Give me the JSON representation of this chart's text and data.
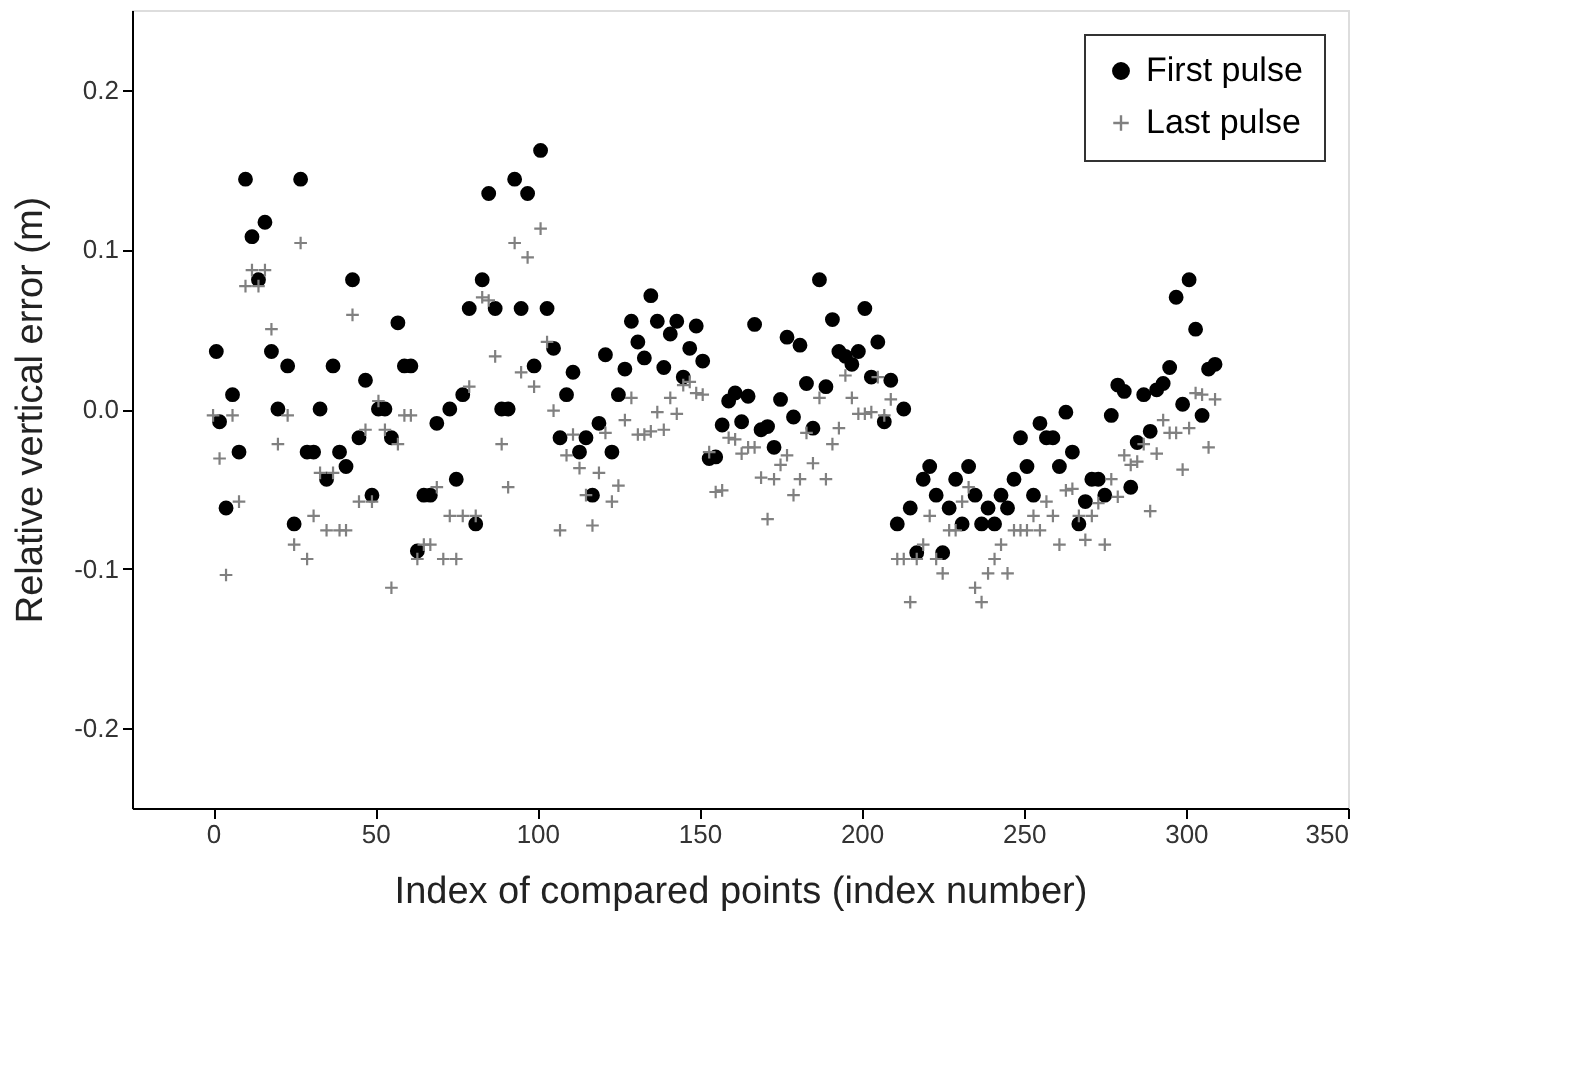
{
  "chart_data": {
    "type": "scatter",
    "xlabel": "Index of compared points (index number)",
    "ylabel": "Relative vertical error (m)",
    "xlim": [
      -25,
      350
    ],
    "xticks": [
      0,
      50,
      100,
      150,
      200,
      250,
      300,
      350
    ],
    "ylim": [
      -0.25,
      0.25
    ],
    "yticks": [
      {
        "value": -0.2,
        "label": "-0.2"
      },
      {
        "value": -0.1,
        "label": "-0.1"
      },
      {
        "value": 0,
        "label": "0.0"
      },
      {
        "value": 0.1,
        "label": "0.1"
      },
      {
        "value": 0.2,
        "label": "0.2"
      }
    ],
    "grid": false,
    "legend": "top right",
    "series": [
      {
        "name": "First pulse",
        "color": "#000000",
        "marker": "circle",
        "x": [
          1,
          2,
          4,
          6,
          8,
          10,
          12,
          14,
          16,
          18,
          20,
          23,
          25,
          27,
          29,
          31,
          33,
          35,
          37,
          39,
          41,
          43,
          45,
          47,
          49,
          51,
          53,
          55,
          57,
          59,
          61,
          63,
          65,
          67,
          69,
          73,
          75,
          77,
          79,
          81,
          83,
          85,
          87,
          89,
          91,
          93,
          95,
          97,
          99,
          101,
          103,
          105,
          107,
          109,
          111,
          113,
          115,
          117,
          119,
          121,
          123,
          125,
          127,
          129,
          131,
          133,
          135,
          137,
          139,
          141,
          143,
          145,
          147,
          149,
          151,
          153,
          155,
          157,
          159,
          161,
          163,
          165,
          167,
          169,
          171,
          173,
          175,
          177,
          179,
          181,
          183,
          185,
          187,
          189,
          191,
          193,
          195,
          197,
          199,
          201,
          203,
          205,
          207,
          209,
          211,
          213,
          215,
          217,
          219,
          221,
          223,
          225,
          227,
          229,
          231,
          233,
          235,
          237,
          239,
          241,
          243,
          245,
          247,
          249,
          251,
          253,
          255,
          257,
          259,
          261,
          263,
          265,
          267,
          269,
          271,
          273,
          275,
          277,
          279,
          281,
          283,
          285,
          287,
          289,
          291,
          293,
          295,
          297,
          299,
          301,
          303,
          305,
          307,
          309
        ],
        "values": [
          0.036,
          -0.008,
          -0.062,
          0.009,
          -0.027,
          0.144,
          0.108,
          0.081,
          0.117,
          0.036,
          0.0,
          0.027,
          -0.072,
          0.144,
          -0.027,
          -0.027,
          0.0,
          -0.044,
          0.027,
          -0.027,
          -0.036,
          0.081,
          -0.018,
          0.018,
          -0.054,
          0.0,
          0.0,
          -0.018,
          0.054,
          0.027,
          0.027,
          -0.089,
          -0.054,
          -0.054,
          -0.009,
          0.0,
          -0.044,
          0.009,
          0.063,
          -0.072,
          0.081,
          0.135,
          0.063,
          0.0,
          0.0,
          0.144,
          0.063,
          0.135,
          0.027,
          0.162,
          0.063,
          0.038,
          -0.018,
          0.009,
          0.023,
          -0.027,
          -0.018,
          -0.054,
          -0.009,
          0.034,
          -0.027,
          0.009,
          0.025,
          0.055,
          0.042,
          0.032,
          0.071,
          0.055,
          0.026,
          0.047,
          0.055,
          0.02,
          0.038,
          0.052,
          0.03,
          -0.031,
          -0.03,
          -0.01,
          0.005,
          0.01,
          -0.008,
          0.008,
          0.053,
          -0.013,
          -0.011,
          -0.024,
          0.006,
          0.045,
          -0.005,
          0.04,
          0.016,
          -0.012,
          0.081,
          0.014,
          0.056,
          0.036,
          0.033,
          0.028,
          0.036,
          0.063,
          0.02,
          0.042,
          -0.008,
          0.018,
          -0.072,
          0.0,
          -0.062,
          -0.09,
          -0.044,
          -0.036,
          -0.054,
          -0.09,
          -0.062,
          -0.044,
          -0.072,
          -0.036,
          -0.054,
          -0.072,
          -0.062,
          -0.072,
          -0.054,
          -0.062,
          -0.044,
          -0.018,
          -0.036,
          -0.054,
          -0.009,
          -0.018,
          -0.018,
          -0.036,
          -0.002,
          -0.027,
          -0.072,
          -0.058,
          -0.044,
          -0.044,
          -0.054,
          -0.004,
          0.015,
          0.011,
          -0.049,
          -0.021,
          0.009,
          -0.014,
          0.012,
          0.016,
          0.026,
          0.07,
          0.003,
          0.081,
          0.05,
          -0.004,
          0.025,
          0.028
        ]
      },
      {
        "name": "Last pulse",
        "color": "#808080",
        "marker": "cross",
        "x": [
          0,
          2,
          4,
          6,
          8,
          10,
          12,
          14,
          16,
          18,
          20,
          23,
          25,
          27,
          29,
          31,
          33,
          35,
          37,
          39,
          41,
          43,
          45,
          47,
          49,
          51,
          53,
          55,
          57,
          59,
          61,
          63,
          65,
          67,
          69,
          71,
          73,
          75,
          77,
          79,
          81,
          83,
          85,
          87,
          89,
          91,
          93,
          95,
          97,
          99,
          101,
          103,
          105,
          107,
          109,
          111,
          113,
          115,
          117,
          119,
          121,
          123,
          125,
          127,
          129,
          131,
          133,
          135,
          137,
          139,
          141,
          143,
          145,
          147,
          149,
          151,
          153,
          155,
          157,
          159,
          161,
          163,
          165,
          167,
          169,
          171,
          173,
          175,
          177,
          179,
          181,
          183,
          185,
          187,
          189,
          191,
          193,
          195,
          197,
          199,
          201,
          203,
          205,
          207,
          209,
          211,
          213,
          215,
          217,
          219,
          221,
          223,
          225,
          227,
          229,
          231,
          233,
          235,
          237,
          239,
          241,
          243,
          245,
          247,
          249,
          251,
          253,
          255,
          257,
          259,
          261,
          263,
          265,
          267,
          269,
          271,
          273,
          275,
          277,
          279,
          281,
          283,
          285,
          287,
          289,
          291,
          293,
          295,
          297,
          299,
          301,
          303,
          305,
          307,
          309
        ],
        "values": [
          -0.004,
          -0.031,
          -0.104,
          -0.004,
          -0.058,
          0.077,
          0.087,
          0.077,
          0.087,
          0.05,
          -0.022,
          -0.004,
          -0.085,
          0.104,
          -0.094,
          -0.067,
          -0.04,
          -0.076,
          -0.04,
          -0.076,
          -0.076,
          0.059,
          -0.058,
          -0.013,
          -0.058,
          0.005,
          -0.013,
          -0.112,
          -0.022,
          -0.004,
          -0.004,
          -0.094,
          -0.085,
          -0.085,
          -0.049,
          -0.094,
          -0.067,
          -0.094,
          -0.067,
          0.014,
          -0.067,
          0.07,
          0.068,
          0.033,
          -0.022,
          -0.049,
          0.104,
          0.023,
          0.095,
          0.014,
          0.113,
          0.042,
          -0.001,
          -0.076,
          -0.029,
          -0.016,
          -0.037,
          -0.054,
          -0.073,
          -0.04,
          -0.015,
          -0.058,
          -0.048,
          -0.007,
          0.007,
          -0.016,
          -0.016,
          -0.014,
          -0.002,
          -0.013,
          0.007,
          -0.003,
          0.015,
          0.017,
          0.01,
          0.009,
          -0.027,
          -0.052,
          -0.051,
          -0.018,
          -0.019,
          -0.028,
          -0.024,
          -0.024,
          -0.043,
          -0.069,
          -0.044,
          -0.035,
          -0.029,
          -0.054,
          -0.044,
          -0.015,
          -0.034,
          0.007,
          -0.044,
          -0.022,
          -0.012,
          0.021,
          0.007,
          -0.003,
          -0.003,
          -0.002,
          0.02,
          -0.004,
          0.006,
          -0.094,
          -0.094,
          -0.121,
          -0.094,
          -0.085,
          -0.067,
          -0.094,
          -0.103,
          -0.076,
          -0.076,
          -0.058,
          -0.049,
          -0.112,
          -0.121,
          -0.103,
          -0.094,
          -0.085,
          -0.103,
          -0.076,
          -0.076,
          -0.076,
          -0.067,
          -0.076,
          -0.058,
          -0.067,
          -0.085,
          -0.051,
          -0.05,
          -0.067,
          -0.082,
          -0.067,
          -0.059,
          -0.085,
          -0.044,
          -0.055,
          -0.029,
          -0.035,
          -0.033,
          -0.022,
          -0.064,
          -0.028,
          -0.007,
          -0.015,
          -0.015,
          -0.038,
          -0.012,
          0.01,
          0.009,
          -0.024,
          0.006
        ]
      }
    ]
  }
}
